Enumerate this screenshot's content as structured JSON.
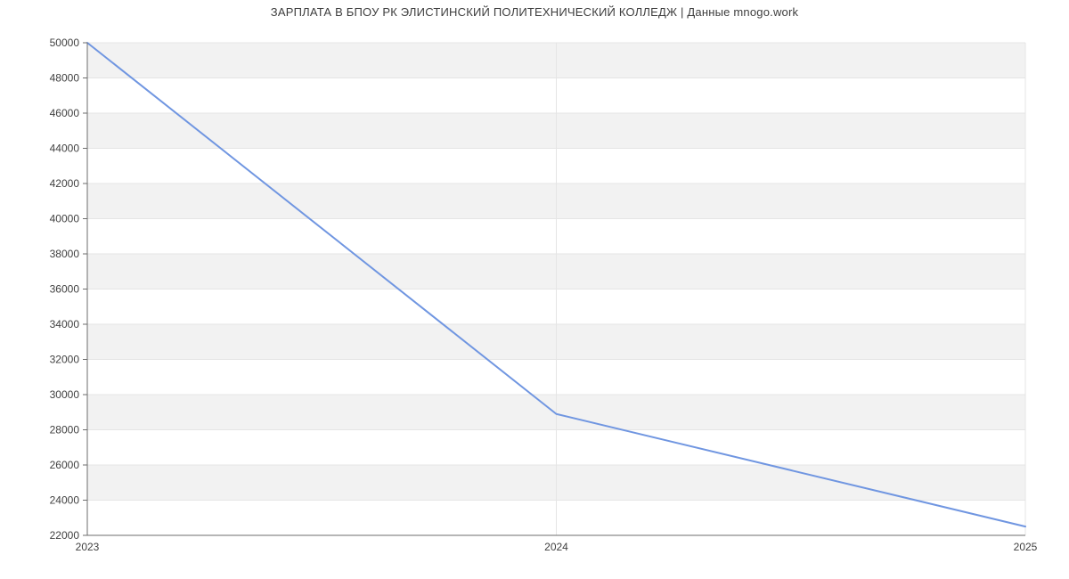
{
  "header": {
    "title": "ЗАРПЛАТА В БПОУ РК ЭЛИСТИНСКИЙ ПОЛИТЕХНИЧЕСКИЙ КОЛЛЕДЖ | Данные mnogo.work"
  },
  "chart_data": {
    "type": "line",
    "title": "ЗАРПЛАТА В БПОУ РК ЭЛИСТИНСКИЙ ПОЛИТЕХНИЧЕСКИЙ КОЛЛЕДЖ | Данные mnogo.work",
    "categories": [
      "2023",
      "2024",
      "2025"
    ],
    "values": [
      50000,
      28900,
      22500
    ],
    "xlabel": "",
    "ylabel": "",
    "ylim": [
      22000,
      50000
    ],
    "y_tick_step": 2000,
    "y_tick_labels": [
      "22000",
      "24000",
      "26000",
      "28000",
      "30000",
      "32000",
      "34000",
      "36000",
      "38000",
      "40000",
      "42000",
      "44000",
      "46000",
      "48000",
      "50000"
    ],
    "grid": true,
    "legend_position": "none",
    "alternating_bands": true,
    "colors": {
      "line": "#7096e1",
      "band": "#f2f2f2",
      "grid": "#e5e5e5",
      "axis": "#6e6e6e",
      "tick_label": "#404040",
      "title": "#3d3d3d"
    }
  }
}
